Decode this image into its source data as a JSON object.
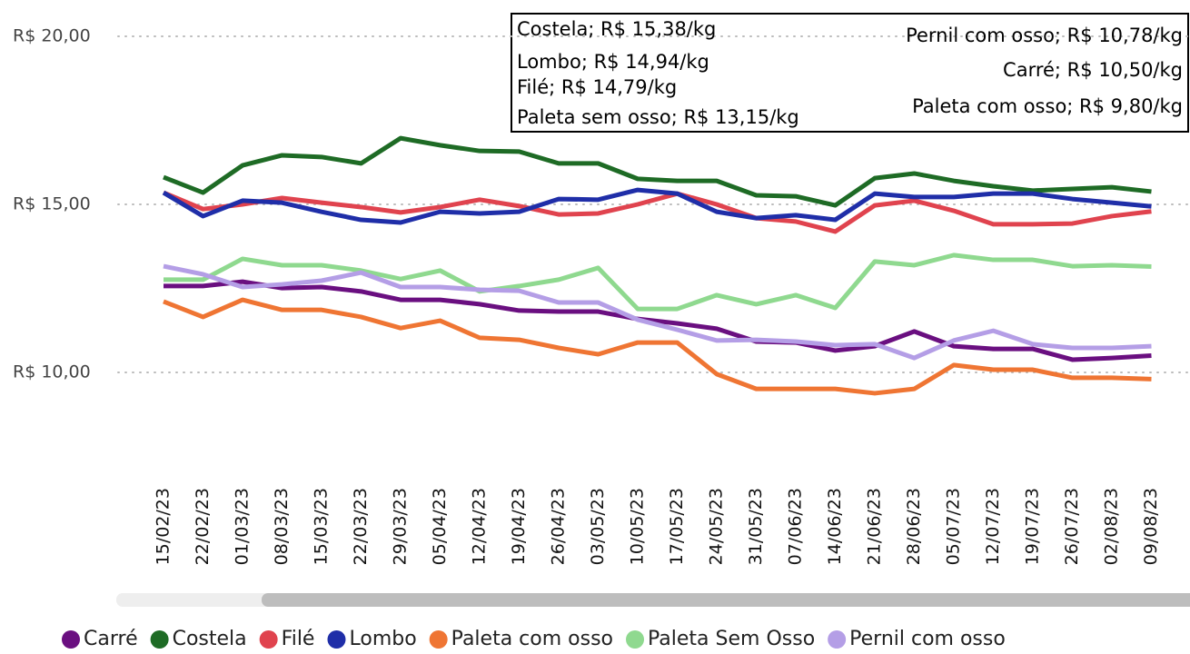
{
  "chart_data": {
    "type": "line",
    "categories": [
      "15/02/23",
      "22/02/23",
      "01/03/23",
      "08/03/23",
      "15/03/23",
      "22/03/23",
      "29/03/23",
      "05/04/23",
      "12/04/23",
      "19/04/23",
      "26/04/23",
      "03/05/23",
      "10/05/23",
      "17/05/23",
      "24/05/23",
      "31/05/23",
      "07/06/23",
      "14/06/23",
      "21/06/23",
      "28/06/23",
      "05/07/23",
      "12/07/23",
      "19/07/23",
      "26/07/23",
      "02/08/23",
      "09/08/23"
    ],
    "series": [
      {
        "name": "Carré",
        "color": "#6a0f80",
        "values": [
          12.57,
          12.57,
          12.7,
          12.51,
          12.54,
          12.41,
          12.16,
          12.16,
          12.03,
          11.84,
          11.81,
          11.81,
          11.59,
          11.46,
          11.3,
          10.92,
          10.89,
          10.65,
          10.78,
          11.22,
          10.78,
          10.7,
          10.7,
          10.38,
          10.43,
          10.5
        ]
      },
      {
        "name": "Costela",
        "color": "#1e6b25",
        "values": [
          15.81,
          15.35,
          16.16,
          16.46,
          16.41,
          16.22,
          16.97,
          16.76,
          16.59,
          16.57,
          16.22,
          16.22,
          15.76,
          15.7,
          15.7,
          15.27,
          15.24,
          14.97,
          15.78,
          15.92,
          15.7,
          15.54,
          15.41,
          15.46,
          15.51,
          15.38
        ]
      },
      {
        "name": "Filé",
        "color": "#e0434e",
        "values": [
          15.35,
          14.86,
          15.0,
          15.19,
          15.05,
          14.92,
          14.76,
          14.92,
          15.14,
          14.95,
          14.7,
          14.73,
          15.0,
          15.32,
          15.0,
          14.59,
          14.49,
          14.19,
          14.97,
          15.11,
          14.81,
          14.41,
          14.41,
          14.43,
          14.65,
          14.79
        ]
      },
      {
        "name": "Lombo",
        "color": "#1f2ea8",
        "values": [
          15.35,
          14.65,
          15.11,
          15.05,
          14.78,
          14.54,
          14.46,
          14.78,
          14.73,
          14.78,
          15.16,
          15.14,
          15.43,
          15.32,
          14.78,
          14.59,
          14.68,
          14.54,
          15.32,
          15.22,
          15.22,
          15.32,
          15.32,
          15.16,
          15.05,
          14.94
        ]
      },
      {
        "name": "Paleta com osso",
        "color": "#ef7533",
        "values": [
          12.11,
          11.65,
          12.16,
          11.86,
          11.86,
          11.65,
          11.32,
          11.54,
          11.03,
          10.97,
          10.73,
          10.54,
          10.89,
          10.89,
          9.95,
          9.51,
          9.51,
          9.51,
          9.38,
          9.51,
          10.22,
          10.08,
          10.08,
          9.84,
          9.84,
          9.8
        ]
      },
      {
        "name": "Paleta Sem Osso",
        "color": "#8fd98f",
        "values": [
          12.76,
          12.76,
          13.38,
          13.19,
          13.19,
          13.03,
          12.78,
          13.03,
          12.41,
          12.57,
          12.76,
          13.11,
          11.89,
          11.89,
          12.3,
          12.03,
          12.3,
          11.92,
          13.3,
          13.19,
          13.49,
          13.35,
          13.35,
          13.16,
          13.19,
          13.15
        ]
      },
      {
        "name": "Pernil com osso",
        "color": "#b49ee6",
        "values": [
          13.16,
          12.92,
          12.54,
          12.62,
          12.73,
          12.97,
          12.54,
          12.54,
          12.46,
          12.43,
          12.08,
          12.08,
          11.57,
          11.27,
          10.95,
          10.97,
          10.92,
          10.81,
          10.84,
          10.43,
          10.95,
          11.24,
          10.84,
          10.73,
          10.73,
          10.78
        ]
      }
    ],
    "ylim": [
      7,
      20
    ],
    "yticks": [
      {
        "value": 10,
        "label": "R$ 10,00"
      },
      {
        "value": 15,
        "label": "R$ 15,00"
      },
      {
        "value": 20,
        "label": "R$ 20,00"
      }
    ],
    "grid": true,
    "annotations_left": [
      "Costela; R$ 15,38/kg",
      "Lombo; R$ 14,94/kg",
      "Filé; R$ 14,79/kg",
      "Paleta sem osso; R$ 13,15/kg"
    ],
    "annotations_right": [
      "Pernil com osso; R$ 10,78/kg",
      "Carré; R$ 10,50/kg",
      "Paleta com osso; R$ 9,80/kg"
    ],
    "legend": "bottom"
  }
}
